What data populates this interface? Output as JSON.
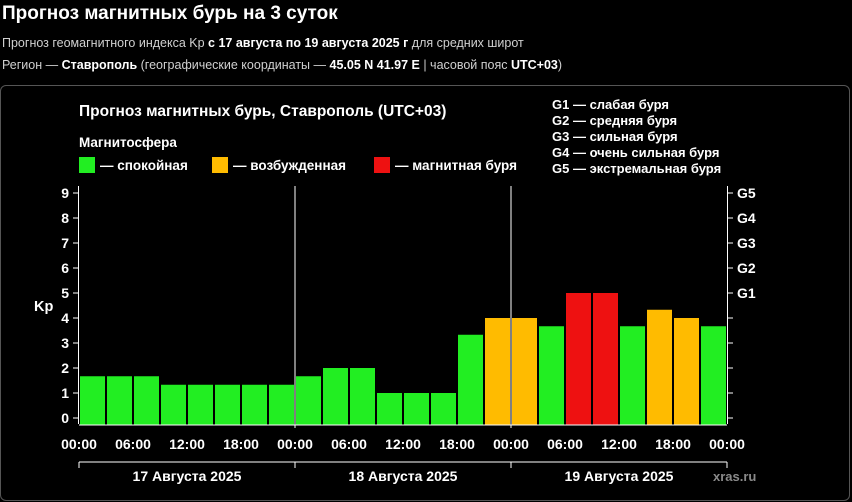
{
  "page": {
    "title": "Прогноз магнитных бурь на 3 суток",
    "line1": {
      "prefix": "Прогноз геомагнитного индекса Kp ",
      "range": "с 17 августа по 19 августа 2025 г",
      "suffix": " для средних широт"
    },
    "line2": {
      "prefix": "Регион — ",
      "region": "Ставрополь",
      "mid": " (географические координаты — ",
      "coords": "45.05 N 41.97 E",
      "tz_label": " | часовой пояс ",
      "tz": "UTC+03",
      "end": ")"
    }
  },
  "chart_data": {
    "type": "bar",
    "title": "Прогноз магнитных бурь, Ставрополь (UTC+03)",
    "legend_title": "Магнитосфера",
    "legend": [
      {
        "label": "— спокойная",
        "color": "#22ee22"
      },
      {
        "label": "— возбужденная",
        "color": "#ffbb00"
      },
      {
        "label": "— магнитная буря",
        "color": "#ee1111"
      }
    ],
    "storm_scale": [
      "G1 — слабая буря",
      "G2 — средняя буря",
      "G3 — сильная буря",
      "G4 — очень сильная буря",
      "G5 — экстремальная буря"
    ],
    "ylabel": "Kp",
    "ylim": [
      0,
      9
    ],
    "yticks": [
      "0",
      "1",
      "2",
      "3",
      "4",
      "5",
      "6",
      "7",
      "8",
      "9"
    ],
    "g_ticks": [
      {
        "label": "G1",
        "kp": 5
      },
      {
        "label": "G2",
        "kp": 6
      },
      {
        "label": "G3",
        "kp": 7
      },
      {
        "label": "G4",
        "kp": 8
      },
      {
        "label": "G5",
        "kp": 9
      }
    ],
    "time_labels": [
      "00:00",
      "06:00",
      "12:00",
      "18:00",
      "00:00",
      "06:00",
      "12:00",
      "18:00",
      "00:00",
      "06:00",
      "12:00",
      "18:00",
      "00:00"
    ],
    "days": [
      "17 Августа 2025",
      "18 Августа 2025",
      "19 Августа 2025"
    ],
    "interval_hours": 3,
    "values": [
      1.67,
      1.67,
      1.67,
      1.33,
      1.33,
      1.33,
      1.33,
      1.33,
      1.67,
      2.0,
      2.0,
      1.0,
      1.0,
      1.0,
      3.33,
      4.0,
      4.0,
      3.67,
      5.0,
      5.0,
      3.67,
      4.33,
      4.0,
      3.67
    ],
    "levels": [
      "quiet",
      "quiet",
      "quiet",
      "quiet",
      "quiet",
      "quiet",
      "quiet",
      "quiet",
      "quiet",
      "quiet",
      "quiet",
      "quiet",
      "quiet",
      "quiet",
      "quiet",
      "active",
      "active",
      "quiet",
      "storm",
      "storm",
      "quiet",
      "active",
      "active",
      "quiet"
    ],
    "colors": {
      "quiet": "#22ee22",
      "active": "#ffbb00",
      "storm": "#ee1111"
    },
    "grid": false,
    "watermark": "xras.ru"
  }
}
